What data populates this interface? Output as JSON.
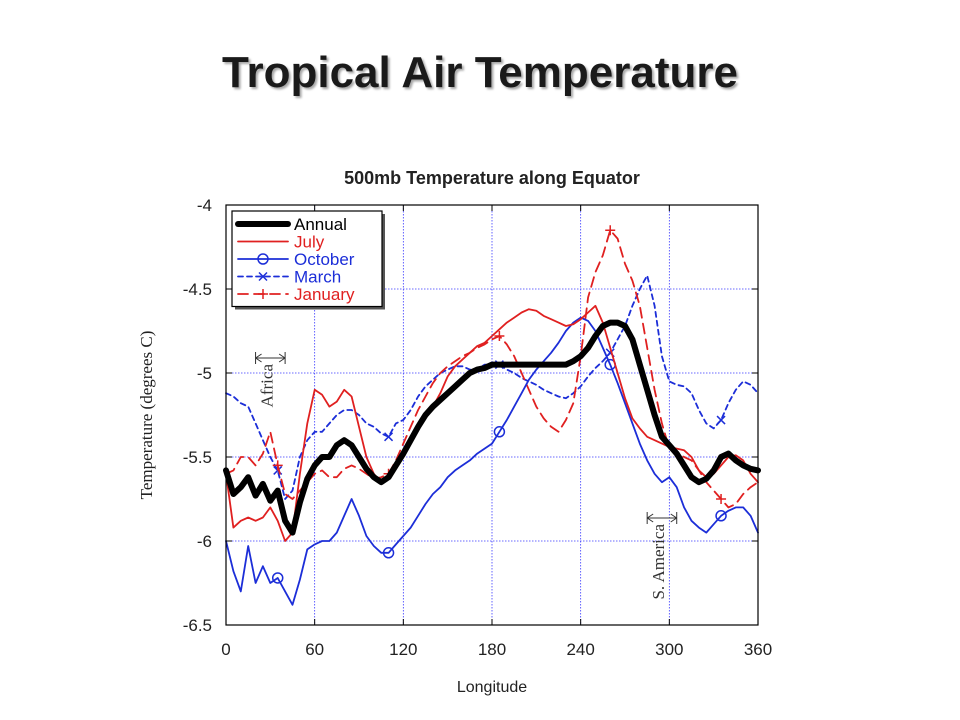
{
  "slide": {
    "title": "Tropical Air Temperature"
  },
  "chart_data": {
    "type": "line",
    "title": "500mb Temperature along Equator",
    "xlabel": "Longitude",
    "ylabel": "Temperature (degrees C)",
    "xlim": [
      0,
      360
    ],
    "ylim": [
      -6.5,
      -4
    ],
    "xticks": [
      0,
      60,
      120,
      180,
      240,
      300,
      360
    ],
    "yticks": [
      -4,
      -4.5,
      -5,
      -5.5,
      -6,
      -6.5
    ],
    "grid": true,
    "legend_position": "top-left",
    "series": [
      {
        "name": "Annual",
        "color": "#000000",
        "style": "solid-thick",
        "marker": "none",
        "x": [
          0,
          5,
          10,
          15,
          20,
          25,
          30,
          35,
          40,
          45,
          50,
          55,
          60,
          65,
          70,
          75,
          80,
          85,
          90,
          95,
          100,
          105,
          110,
          115,
          120,
          125,
          130,
          135,
          140,
          145,
          150,
          155,
          160,
          165,
          170,
          175,
          180,
          185,
          190,
          195,
          200,
          205,
          210,
          215,
          220,
          225,
          230,
          235,
          240,
          245,
          250,
          255,
          260,
          265,
          270,
          275,
          280,
          285,
          290,
          295,
          300,
          305,
          310,
          315,
          320,
          325,
          330,
          335,
          340,
          345,
          350,
          355,
          360
        ],
        "y": [
          -5.58,
          -5.72,
          -5.68,
          -5.62,
          -5.73,
          -5.66,
          -5.76,
          -5.7,
          -5.88,
          -5.95,
          -5.77,
          -5.63,
          -5.55,
          -5.5,
          -5.5,
          -5.43,
          -5.4,
          -5.43,
          -5.5,
          -5.57,
          -5.62,
          -5.65,
          -5.62,
          -5.55,
          -5.48,
          -5.4,
          -5.32,
          -5.25,
          -5.2,
          -5.16,
          -5.12,
          -5.08,
          -5.04,
          -5.0,
          -4.98,
          -4.97,
          -4.95,
          -4.95,
          -4.95,
          -4.95,
          -4.95,
          -4.95,
          -4.95,
          -4.95,
          -4.95,
          -4.95,
          -4.95,
          -4.93,
          -4.9,
          -4.85,
          -4.78,
          -4.72,
          -4.7,
          -4.7,
          -4.72,
          -4.8,
          -4.95,
          -5.1,
          -5.25,
          -5.38,
          -5.43,
          -5.48,
          -5.55,
          -5.62,
          -5.65,
          -5.63,
          -5.58,
          -5.5,
          -5.48,
          -5.52,
          -5.55,
          -5.57,
          -5.58
        ]
      },
      {
        "name": "July",
        "color": "#e02020",
        "style": "solid",
        "marker": "none",
        "x": [
          0,
          5,
          10,
          15,
          20,
          25,
          30,
          35,
          40,
          45,
          50,
          55,
          60,
          65,
          70,
          75,
          80,
          85,
          90,
          95,
          100,
          105,
          110,
          115,
          120,
          125,
          130,
          135,
          140,
          145,
          150,
          155,
          160,
          165,
          170,
          175,
          180,
          185,
          190,
          195,
          200,
          205,
          210,
          215,
          220,
          225,
          230,
          235,
          240,
          245,
          250,
          255,
          260,
          265,
          270,
          275,
          280,
          285,
          290,
          295,
          300,
          305,
          310,
          315,
          320,
          325,
          330,
          335,
          340,
          345,
          350,
          355,
          360
        ],
        "y": [
          -5.6,
          -5.92,
          -5.88,
          -5.86,
          -5.88,
          -5.86,
          -5.8,
          -5.88,
          -6.0,
          -5.95,
          -5.6,
          -5.3,
          -5.1,
          -5.13,
          -5.2,
          -5.17,
          -5.1,
          -5.14,
          -5.32,
          -5.5,
          -5.6,
          -5.65,
          -5.62,
          -5.55,
          -5.48,
          -5.38,
          -5.3,
          -5.24,
          -5.2,
          -5.12,
          -5.02,
          -4.96,
          -4.92,
          -4.88,
          -4.84,
          -4.82,
          -4.78,
          -4.74,
          -4.7,
          -4.67,
          -4.64,
          -4.62,
          -4.63,
          -4.66,
          -4.68,
          -4.7,
          -4.72,
          -4.71,
          -4.68,
          -4.64,
          -4.6,
          -4.7,
          -4.85,
          -5.0,
          -5.15,
          -5.27,
          -5.33,
          -5.38,
          -5.4,
          -5.42,
          -5.44,
          -5.45,
          -5.46,
          -5.5,
          -5.58,
          -5.62,
          -5.6,
          -5.55,
          -5.5,
          -5.49,
          -5.52,
          -5.6,
          -5.65
        ]
      },
      {
        "name": "October",
        "color": "#1c2ed8",
        "style": "solid",
        "marker": "circle",
        "x": [
          0,
          5,
          10,
          15,
          20,
          25,
          30,
          35,
          40,
          45,
          50,
          55,
          60,
          65,
          70,
          75,
          80,
          85,
          90,
          95,
          100,
          105,
          110,
          115,
          120,
          125,
          130,
          135,
          140,
          145,
          150,
          155,
          160,
          165,
          170,
          175,
          180,
          185,
          190,
          195,
          200,
          205,
          210,
          215,
          220,
          225,
          230,
          235,
          240,
          245,
          250,
          255,
          260,
          265,
          270,
          275,
          280,
          285,
          290,
          295,
          300,
          305,
          310,
          315,
          320,
          325,
          330,
          335,
          340,
          345,
          350,
          355,
          360
        ],
        "y": [
          -6.0,
          -6.18,
          -6.3,
          -6.03,
          -6.25,
          -6.15,
          -6.25,
          -6.22,
          -6.3,
          -6.38,
          -6.23,
          -6.05,
          -6.02,
          -6.0,
          -6.0,
          -5.95,
          -5.85,
          -5.75,
          -5.85,
          -5.97,
          -6.03,
          -6.07,
          -6.07,
          -6.02,
          -5.97,
          -5.92,
          -5.85,
          -5.78,
          -5.72,
          -5.68,
          -5.62,
          -5.58,
          -5.55,
          -5.52,
          -5.48,
          -5.45,
          -5.42,
          -5.35,
          -5.28,
          -5.2,
          -5.12,
          -5.04,
          -4.98,
          -4.93,
          -4.88,
          -4.82,
          -4.75,
          -4.7,
          -4.67,
          -4.69,
          -4.75,
          -4.85,
          -4.95,
          -5.06,
          -5.18,
          -5.3,
          -5.42,
          -5.52,
          -5.6,
          -5.65,
          -5.62,
          -5.68,
          -5.8,
          -5.88,
          -5.92,
          -5.95,
          -5.9,
          -5.85,
          -5.82,
          -5.8,
          -5.8,
          -5.85,
          -5.95
        ]
      },
      {
        "name": "March",
        "color": "#1c2ed8",
        "style": "dashed",
        "marker": "x",
        "x": [
          0,
          5,
          10,
          15,
          20,
          25,
          30,
          35,
          40,
          45,
          50,
          55,
          60,
          65,
          70,
          75,
          80,
          85,
          90,
          95,
          100,
          105,
          110,
          115,
          120,
          125,
          130,
          135,
          140,
          145,
          150,
          155,
          160,
          165,
          170,
          175,
          180,
          185,
          190,
          195,
          200,
          205,
          210,
          215,
          220,
          225,
          230,
          235,
          240,
          245,
          250,
          255,
          260,
          265,
          270,
          275,
          280,
          285,
          290,
          295,
          300,
          305,
          310,
          315,
          320,
          325,
          330,
          335,
          340,
          345,
          350,
          355,
          360
        ],
        "y": [
          -5.12,
          -5.14,
          -5.18,
          -5.2,
          -5.3,
          -5.4,
          -5.5,
          -5.58,
          -5.75,
          -5.7,
          -5.5,
          -5.4,
          -5.35,
          -5.35,
          -5.3,
          -5.25,
          -5.22,
          -5.22,
          -5.25,
          -5.3,
          -5.32,
          -5.36,
          -5.38,
          -5.3,
          -5.28,
          -5.22,
          -5.14,
          -5.08,
          -5.04,
          -5.0,
          -4.98,
          -4.96,
          -4.96,
          -4.98,
          -4.98,
          -4.95,
          -4.95,
          -4.95,
          -4.98,
          -5.0,
          -5.03,
          -5.05,
          -5.07,
          -5.1,
          -5.12,
          -5.14,
          -5.15,
          -5.12,
          -5.08,
          -5.02,
          -4.97,
          -4.93,
          -4.88,
          -4.8,
          -4.72,
          -4.6,
          -4.5,
          -4.42,
          -4.6,
          -4.9,
          -5.05,
          -5.07,
          -5.08,
          -5.12,
          -5.22,
          -5.3,
          -5.33,
          -5.28,
          -5.18,
          -5.1,
          -5.05,
          -5.07,
          -5.12
        ]
      },
      {
        "name": "January",
        "color": "#e02020",
        "style": "dashed",
        "marker": "plus",
        "x": [
          0,
          5,
          10,
          15,
          20,
          25,
          30,
          35,
          40,
          45,
          50,
          55,
          60,
          65,
          70,
          75,
          80,
          85,
          90,
          95,
          100,
          105,
          110,
          115,
          120,
          125,
          130,
          135,
          140,
          145,
          150,
          155,
          160,
          165,
          170,
          175,
          180,
          185,
          190,
          195,
          200,
          205,
          210,
          215,
          220,
          225,
          230,
          235,
          240,
          245,
          250,
          255,
          260,
          265,
          270,
          275,
          280,
          285,
          290,
          295,
          300,
          305,
          310,
          315,
          320,
          325,
          330,
          335,
          340,
          345,
          350,
          355,
          360
        ],
        "y": [
          -5.6,
          -5.58,
          -5.5,
          -5.5,
          -5.55,
          -5.48,
          -5.35,
          -5.55,
          -5.72,
          -5.75,
          -5.7,
          -5.65,
          -5.6,
          -5.58,
          -5.62,
          -5.62,
          -5.57,
          -5.55,
          -5.57,
          -5.6,
          -5.63,
          -5.62,
          -5.6,
          -5.52,
          -5.42,
          -5.32,
          -5.22,
          -5.14,
          -5.06,
          -5.0,
          -4.96,
          -4.93,
          -4.9,
          -4.88,
          -4.85,
          -4.83,
          -4.8,
          -4.78,
          -4.83,
          -4.9,
          -5.0,
          -5.1,
          -5.2,
          -5.27,
          -5.32,
          -5.35,
          -5.28,
          -5.18,
          -4.9,
          -4.55,
          -4.4,
          -4.3,
          -4.15,
          -4.2,
          -4.35,
          -4.45,
          -4.6,
          -4.85,
          -5.1,
          -5.3,
          -5.45,
          -5.48,
          -5.5,
          -5.52,
          -5.58,
          -5.65,
          -5.7,
          -5.75,
          -5.8,
          -5.78,
          -5.72,
          -5.68,
          -5.65
        ]
      }
    ],
    "annotations": [
      {
        "text": "Africa",
        "x_range": [
          20,
          40
        ]
      },
      {
        "text": "S. America",
        "x_range": [
          285,
          305
        ]
      }
    ]
  }
}
